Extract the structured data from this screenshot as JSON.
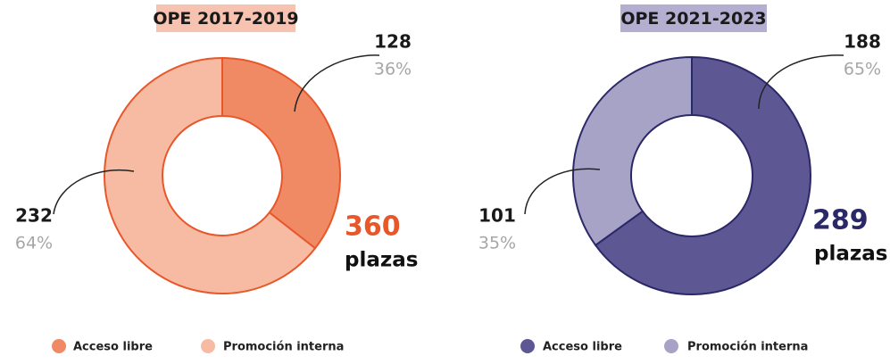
{
  "chart_data": [
    {
      "type": "donut",
      "title": "OPE 2017-2019",
      "title_background": "#f7c3b0",
      "border_color": "#e8572a",
      "total": 360,
      "total_label": "plazas",
      "total_color": "#e8572a",
      "categories": [
        "Acceso libre",
        "Promoción interna"
      ],
      "values": [
        128,
        232
      ],
      "colors": [
        "#f08a64",
        "#f7bba3"
      ],
      "percents": [
        36,
        64
      ],
      "percent_labels": [
        "36%",
        "64%"
      ]
    },
    {
      "type": "donut",
      "title": "OPE 2021-2023",
      "title_background": "#b4afd1",
      "border_color": "#2b2868",
      "total": 289,
      "total_label": "plazas",
      "total_color": "#2b2868",
      "categories": [
        "Acceso libre",
        "Promoción interna"
      ],
      "values": [
        188,
        101
      ],
      "colors": [
        "#5d5894",
        "#a6a3c6"
      ],
      "percents": [
        65,
        35
      ],
      "percent_labels": [
        "65%",
        "35%"
      ]
    }
  ]
}
